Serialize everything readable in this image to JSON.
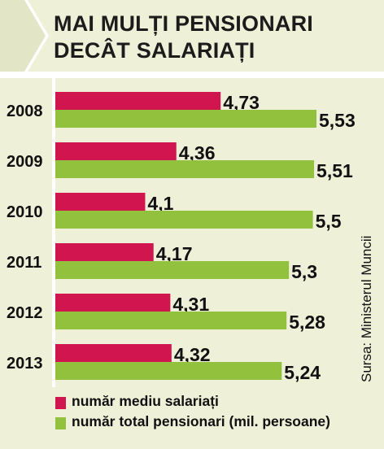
{
  "title": {
    "line1": "MAI MULȚI PENSIONARI",
    "line2": "DECÂT SALARIAȚI"
  },
  "source": "Sursa: Ministerul Muncii",
  "colors": {
    "salariati": "#d0154f",
    "pensionari": "#92c13d",
    "background": "#eef0d8"
  },
  "legend": [
    {
      "key": "salariati",
      "label": "număr mediu salariați"
    },
    {
      "key": "pensionari",
      "label": "număr total pensionari (mil. persoane)"
    }
  ],
  "chart_data": {
    "type": "bar",
    "orientation": "horizontal",
    "categories": [
      "2008",
      "2009",
      "2010",
      "2011",
      "2012",
      "2013"
    ],
    "series": [
      {
        "key": "salariati",
        "name": "număr mediu salariați",
        "values": [
          4.73,
          4.36,
          4.1,
          4.17,
          4.31,
          4.32
        ],
        "labels": [
          "4,73",
          "4,36",
          "4,1",
          "4,17",
          "4,31",
          "4,32"
        ]
      },
      {
        "key": "pensionari",
        "name": "număr total pensionari (mil. persoane)",
        "values": [
          5.53,
          5.51,
          5.5,
          5.3,
          5.28,
          5.24
        ],
        "labels": [
          "5,53",
          "5,51",
          "5,5",
          "5,3",
          "5,28",
          "5,24"
        ]
      }
    ],
    "xlim": [
      3.35,
      5.53
    ],
    "grid": false,
    "legend_position": "bottom-left"
  }
}
